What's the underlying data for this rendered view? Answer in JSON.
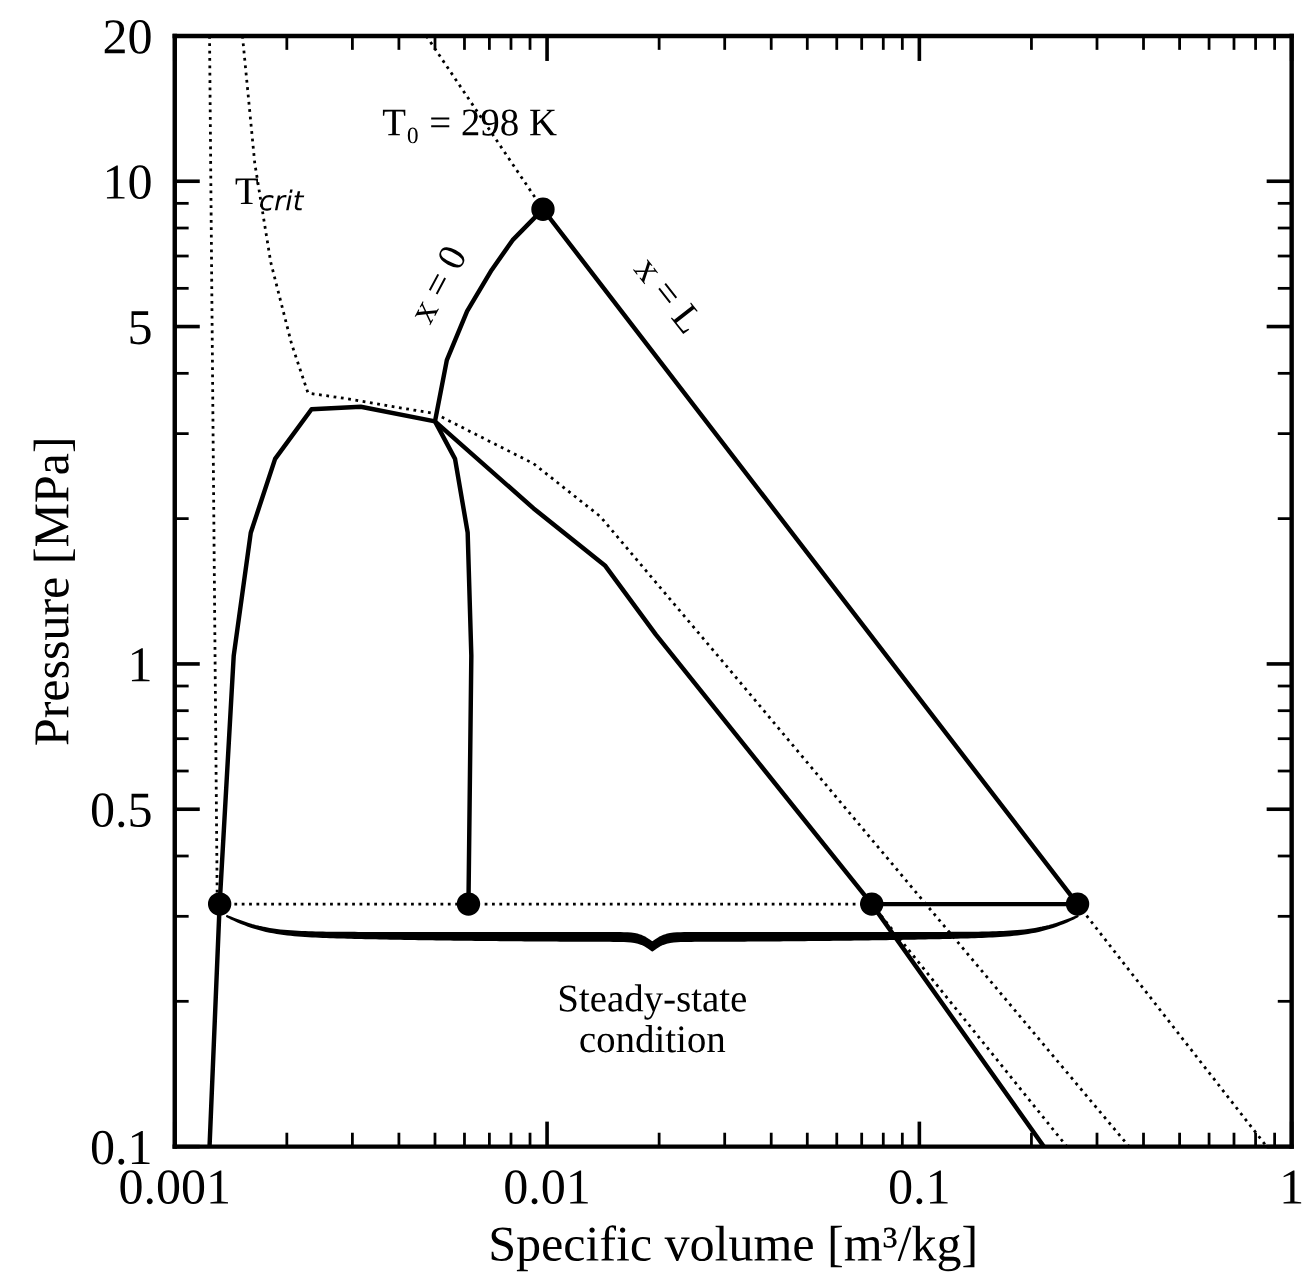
{
  "chart_data": {
    "type": "line",
    "xlabel": "Specific volume [m³/kg]",
    "ylabel": "Pressure [MPa]",
    "log": "xy",
    "xlim": [
      0.001,
      1
    ],
    "ylim": [
      0.1,
      20
    ],
    "xticks": [
      0.001,
      0.01,
      0.1,
      1
    ],
    "yticks": [
      0.1,
      0.5,
      1,
      5,
      10,
      20
    ],
    "grid": false,
    "legend": false,
    "series": [
      {
        "color": "#000000",
        "line_style": "solid",
        "x": [
          0.00124,
          0.00132,
          0.00144,
          0.0016,
          0.00186,
          0.00233,
          0.00316,
          0.005,
          0.0092,
          0.0143,
          0.0196,
          0.0745,
          0.216
        ],
        "values": [
          0.1,
          0.318,
          1.04,
          1.87,
          2.66,
          3.37,
          3.41,
          3.18,
          2.1,
          1.6,
          1.15,
          0.318,
          0.1
        ]
      },
      {
        "color": "#000000",
        "line_style": "solid",
        "x": [
          0.00615,
          0.00626,
          0.00612,
          0.00566,
          0.005,
          0.00538,
          0.0061,
          0.0071,
          0.00808,
          0.00975
        ],
        "values": [
          0.318,
          1.04,
          1.87,
          2.66,
          3.18,
          4.26,
          5.38,
          6.55,
          7.55,
          8.75
        ]
      },
      {
        "color": "#000000",
        "line_style": "solid",
        "x": [
          0.00975,
          0.266,
          0.0745
        ],
        "values": [
          8.75,
          0.318,
          0.318
        ]
      },
      {
        "color": "#000000",
        "line_style": "dotted",
        "x": [
          0.00132,
          0.0745
        ],
        "values": [
          0.318,
          0.318
        ]
      },
      {
        "color": "#000000",
        "line_style": "dotted",
        "x": [
          0.00124,
          0.0013
        ],
        "values": [
          20,
          0.33
        ]
      },
      {
        "color": "#000000",
        "line_style": "dotted",
        "x": [
          0.00474,
          0.00975
        ],
        "values": [
          20,
          8.75
        ]
      },
      {
        "color": "#000000",
        "line_style": "dotted",
        "x": [
          0.266,
          0.857
        ],
        "values": [
          0.318,
          0.1
        ]
      },
      {
        "color": "#000000",
        "line_style": "dotted",
        "x": [
          0.0745,
          0.249
        ],
        "values": [
          0.318,
          0.1
        ]
      },
      {
        "color": "#000000",
        "line_style": "dotted",
        "x": [
          0.00152,
          0.00164,
          0.00181,
          0.00206,
          0.00228,
          0.00286,
          0.005,
          0.0092,
          0.0139,
          0.03,
          0.1,
          0.366
        ],
        "values": [
          20,
          10.9,
          6.8,
          4.6,
          3.64,
          3.55,
          3.3,
          2.6,
          2.02,
          1.0,
          0.33,
          0.1
        ]
      },
      {
        "type": "scatter",
        "color": "#000000",
        "marker": "circle",
        "x": [
          0.00132,
          0.00615,
          0.00975,
          0.0745,
          0.266
        ],
        "values": [
          0.318,
          0.318,
          8.75,
          0.318,
          0.318
        ]
      }
    ],
    "annotations": [
      "T₀ = 298 K",
      "T$_{crit}$",
      "x = 0",
      "x = L",
      "Steady-state\ncondition"
    ]
  }
}
